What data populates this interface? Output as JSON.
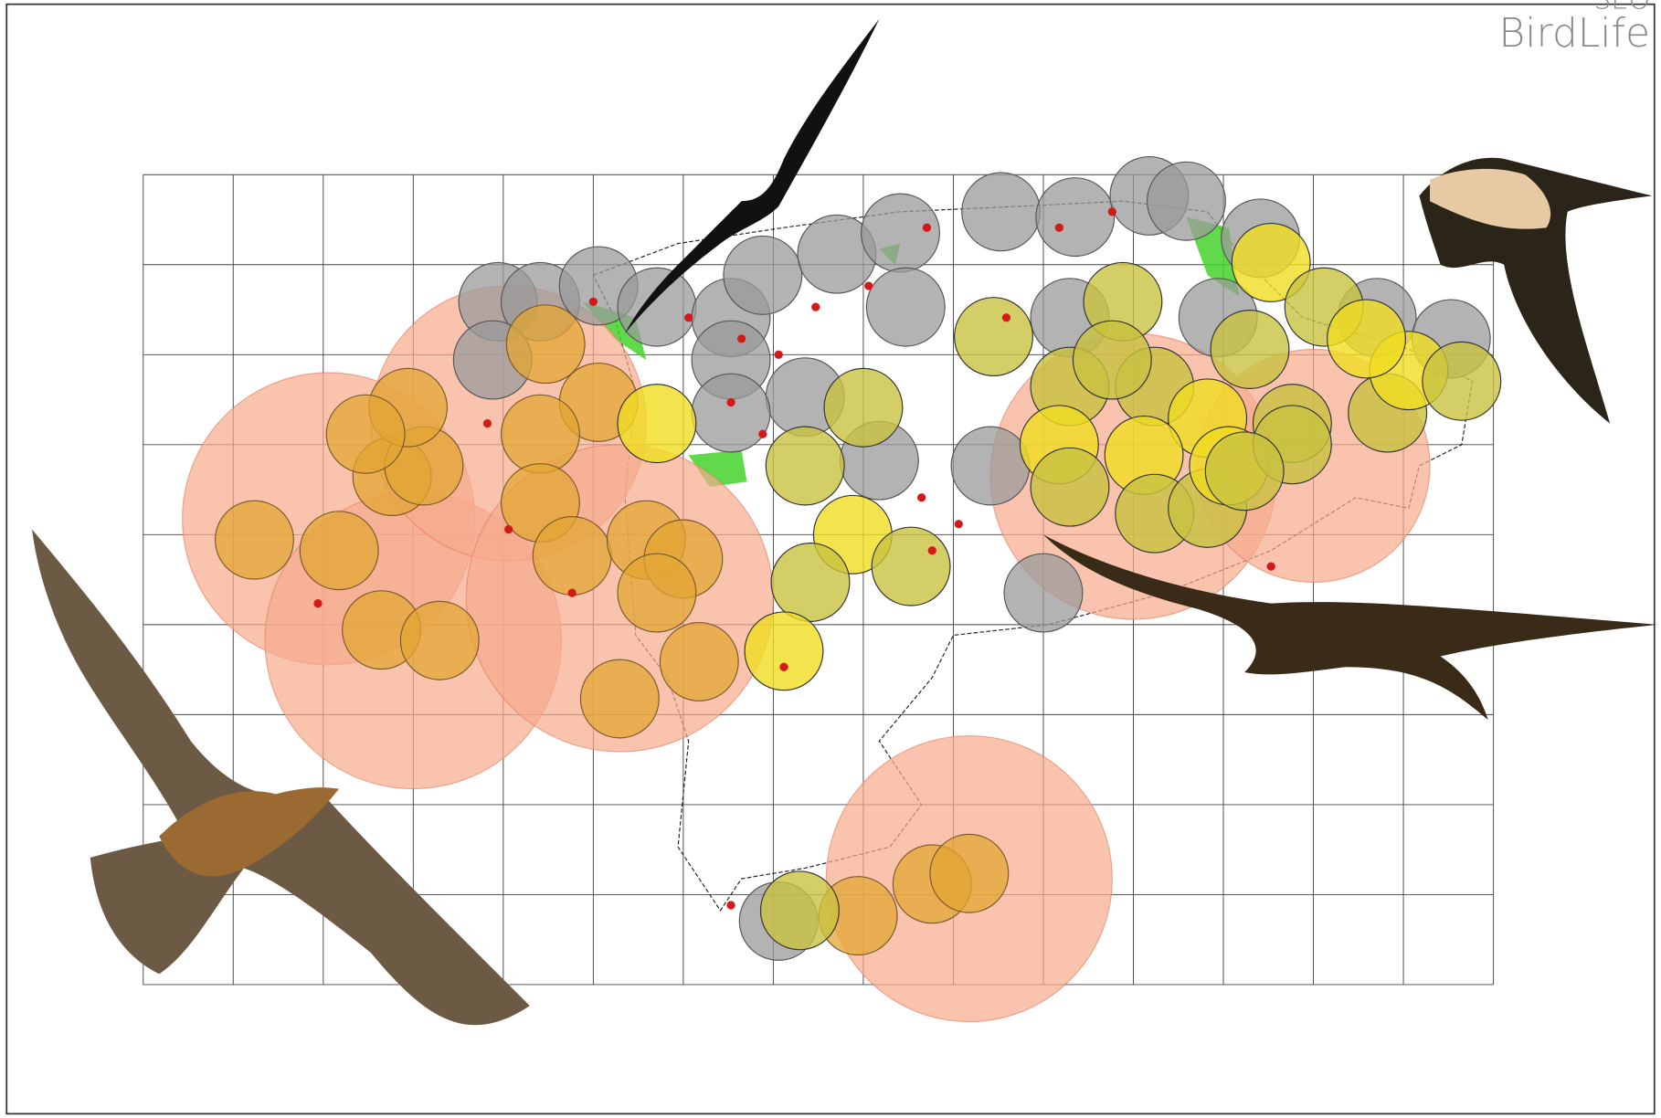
{
  "logo": {
    "top": "SEO",
    "name": "BirdLife"
  }
}
